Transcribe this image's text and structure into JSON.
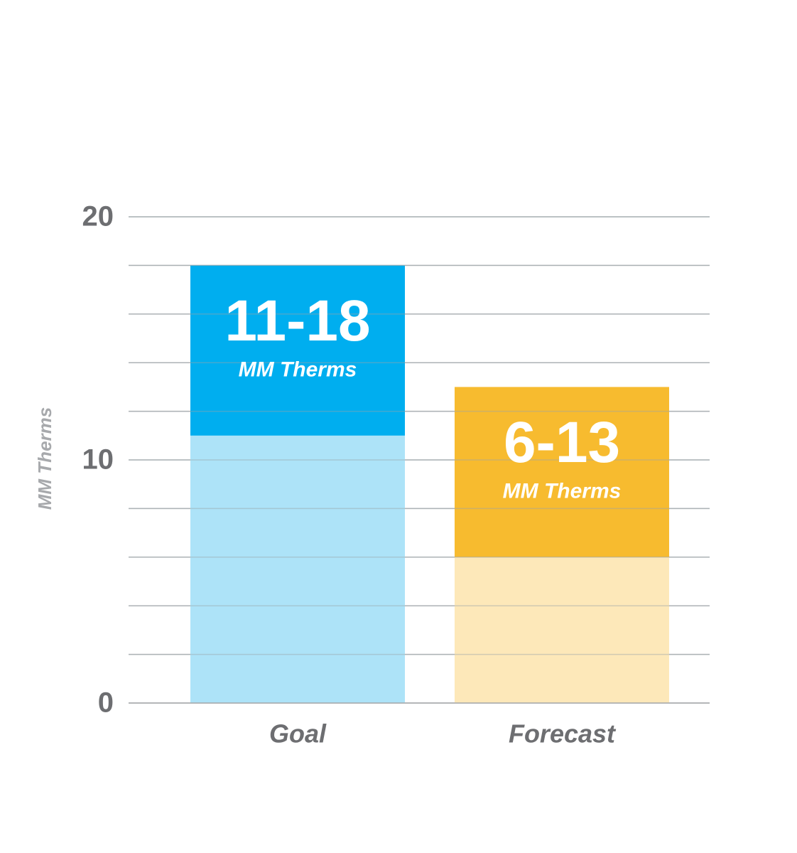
{
  "chart_data": {
    "type": "range_bar",
    "y_axis_label": "MM Therms",
    "categories": [
      "Goal",
      "Forecast"
    ],
    "low": [
      11,
      6
    ],
    "high": [
      18,
      13
    ],
    "value_labels": [
      "11-18",
      "6-13"
    ],
    "value_units": [
      "MM Therms",
      "MM Therms"
    ],
    "colors": [
      "#00aeef",
      "#f7bb2f"
    ],
    "base_colors": [
      "#ade3f8",
      "#fde8b9"
    ],
    "ylim": [
      0,
      20
    ],
    "yticks": [
      0,
      10,
      20
    ],
    "grid_yticks": [
      0,
      2,
      4,
      6,
      8,
      10,
      12,
      14,
      16,
      18,
      20
    ],
    "grid": true
  }
}
